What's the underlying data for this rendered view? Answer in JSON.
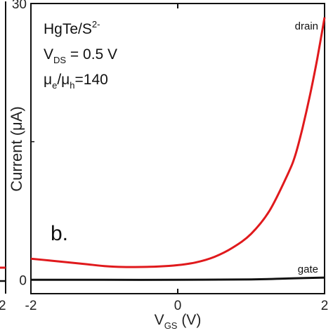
{
  "chart_data": {
    "type": "line",
    "panel_label": "b.",
    "annotations": {
      "material": "HgTe/S",
      "material_sup": "2-",
      "vds_prefix": "V",
      "vds_sub": "DS",
      "vds_value": " = 0.5 V",
      "mu_e": "μ",
      "mu_e_sub": "e",
      "mu_slash": "/μ",
      "mu_h_sub": "h",
      "mu_ratio": "=140"
    },
    "xlabel": {
      "prefix": "V",
      "sub": "GS",
      "suffix": " (V)"
    },
    "ylabel": "Current (μA)",
    "xlim": [
      -2,
      2
    ],
    "ylim": [
      -1.5,
      30
    ],
    "x_ticks": [
      -2,
      0,
      2
    ],
    "x_tick_labels": [
      "-2",
      "0",
      "2"
    ],
    "y_ticks": [
      0,
      30
    ],
    "y_tick_labels": [
      "0",
      "30"
    ],
    "y_minor_ticks": [
      15
    ],
    "left_panel_fragment": {
      "x_tick_label": "2"
    },
    "series": [
      {
        "name": "drain",
        "color": "#e0191c",
        "x": [
          -2.0,
          -1.75,
          -1.5,
          -1.25,
          -1.0,
          -0.75,
          -0.5,
          -0.25,
          0.0,
          0.25,
          0.5,
          0.75,
          1.0,
          1.25,
          1.5,
          1.6,
          1.7,
          1.8,
          1.9,
          2.0
        ],
        "y": [
          2.3,
          2.1,
          1.9,
          1.7,
          1.5,
          1.4,
          1.4,
          1.45,
          1.6,
          1.9,
          2.5,
          3.5,
          5.0,
          7.5,
          11.5,
          13.5,
          16.5,
          20.0,
          24.0,
          28.5
        ]
      },
      {
        "name": "gate",
        "color": "#111111",
        "x": [
          -2.0,
          -1.0,
          0.0,
          1.0,
          1.5,
          2.0
        ],
        "y": [
          0.0,
          0.0,
          0.0,
          0.05,
          0.15,
          0.25
        ]
      }
    ]
  }
}
